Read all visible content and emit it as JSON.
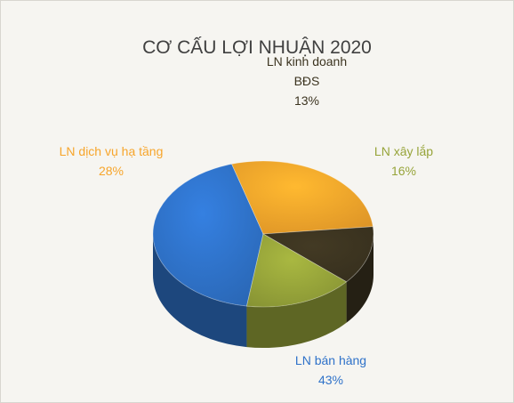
{
  "chart_data": {
    "type": "pie",
    "title": "CƠ CẤU LỢI NHUẬN 2020",
    "slices": [
      {
        "label": "LN bán hàng",
        "label_lines": [
          "LN bán hàng"
        ],
        "value": 43,
        "value_text": "43%",
        "color": "#2f72c9",
        "label_color": "#2f72c9"
      },
      {
        "label": "LN dịch vụ hạ tầng",
        "label_lines": [
          "LN dịch vụ hạ tầng"
        ],
        "value": 28,
        "value_text": "28%",
        "color": "#f7a52b",
        "label_color": "#f7a52b"
      },
      {
        "label": "LN kinh doanh BĐS",
        "label_lines": [
          "LN kinh doanh",
          "BĐS"
        ],
        "value": 13,
        "value_text": "13%",
        "color": "#3c3420",
        "label_color": "#3c3420"
      },
      {
        "label": "LN xây lắp",
        "label_lines": [
          "LN xây lắp"
        ],
        "value": 16,
        "value_text": "16%",
        "color": "#97a43a",
        "label_color": "#97a43a"
      }
    ],
    "legend": "none",
    "style": "3d"
  }
}
